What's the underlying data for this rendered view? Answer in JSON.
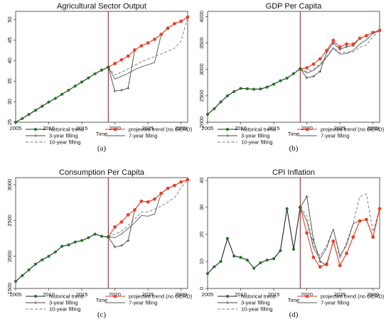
{
  "chart_data": [
    {
      "type": "line",
      "title": "Agricultural Sector Output",
      "caption": "(a)",
      "xlabel": "Time",
      "ylabel": "",
      "xlim": [
        2005,
        2031
      ],
      "ylim": [
        25,
        52
      ],
      "xticks": [
        2005,
        2010,
        2015,
        2020,
        2025,
        2030
      ],
      "yticks": [
        25,
        30,
        35,
        40,
        45,
        50
      ],
      "vline_x": 2019,
      "legend_position": "bottom",
      "series": [
        {
          "name": "historical trend",
          "x": [
            2005,
            2006,
            2007,
            2008,
            2009,
            2010,
            2011,
            2012,
            2013,
            2014,
            2015,
            2016,
            2017,
            2018,
            2019
          ],
          "values": [
            25,
            25.9,
            26.9,
            27.9,
            28.9,
            29.9,
            30.8,
            31.8,
            32.8,
            33.8,
            34.8,
            35.8,
            36.8,
            37.7,
            38.4
          ]
        },
        {
          "name": "projected trend (no GERD)",
          "x": [
            2019,
            2020,
            2021,
            2022,
            2023,
            2024,
            2025,
            2026,
            2027,
            2028,
            2029,
            2030,
            2031
          ],
          "values": [
            38.4,
            39.3,
            40.2,
            41.1,
            42.6,
            43.6,
            44.3,
            45.2,
            46.4,
            47.9,
            49,
            49.6,
            50.6
          ]
        },
        {
          "name": "3-year filling",
          "x": [
            2019,
            2020,
            2021,
            2022,
            2023,
            2024,
            2025,
            2026,
            2027,
            2028,
            2029,
            2030,
            2031
          ],
          "values": [
            38.4,
            32.6,
            32.8,
            33.3,
            42.6,
            43.6,
            44.3,
            45.2,
            46.4,
            47.9,
            49,
            49.6,
            50.6
          ]
        },
        {
          "name": "7-year filling",
          "x": [
            2019,
            2020,
            2021,
            2022,
            2023,
            2024,
            2025,
            2026,
            2027,
            2028,
            2029,
            2030,
            2031
          ],
          "values": [
            38.4,
            35.5,
            36.2,
            36.9,
            37.8,
            38.5,
            39,
            39.5,
            46.4,
            47.9,
            49,
            49.6,
            50.6
          ]
        },
        {
          "name": "10-year filling",
          "x": [
            2019,
            2020,
            2021,
            2022,
            2023,
            2024,
            2025,
            2026,
            2027,
            2028,
            2029,
            2030,
            2031
          ],
          "values": [
            38.4,
            36.5,
            37.2,
            38,
            38.9,
            39.7,
            40.4,
            41,
            41.6,
            42.3,
            43,
            44.8,
            50.6
          ]
        }
      ]
    },
    {
      "type": "line",
      "title": "GDP Per Capita",
      "caption": "(b)",
      "xlabel": "Time",
      "ylabel": "",
      "xlim": [
        2005,
        2031
      ],
      "ylim": [
        2000,
        4100
      ],
      "xticks": [
        2005,
        2010,
        2015,
        2020,
        2025,
        2030
      ],
      "yticks": [
        2000,
        2500,
        3000,
        3500,
        4000
      ],
      "vline_x": 2019,
      "legend_position": "bottom",
      "series": [
        {
          "name": "historical trend",
          "x": [
            2005,
            2006,
            2007,
            2008,
            2009,
            2010,
            2011,
            2012,
            2013,
            2014,
            2015,
            2016,
            2017,
            2018,
            2019
          ],
          "values": [
            2150,
            2255,
            2385,
            2500,
            2580,
            2640,
            2635,
            2625,
            2630,
            2665,
            2720,
            2785,
            2835,
            2920,
            3010
          ]
        },
        {
          "name": "projected trend (no GERD)",
          "x": [
            2019,
            2020,
            2021,
            2022,
            2023,
            2024,
            2025,
            2026,
            2027,
            2028,
            2029,
            2030,
            2031
          ],
          "values": [
            3010,
            3030,
            3100,
            3200,
            3360,
            3550,
            3425,
            3480,
            3480,
            3590,
            3640,
            3700,
            3740
          ]
        },
        {
          "name": "3-year filling",
          "x": [
            2019,
            2020,
            2021,
            2022,
            2023,
            2024,
            2025,
            2026,
            2027,
            2028,
            2029,
            2030,
            2031
          ],
          "values": [
            3010,
            2840,
            2870,
            2960,
            3330,
            3500,
            3380,
            3430,
            3450,
            3590,
            3640,
            3700,
            3740
          ]
        },
        {
          "name": "7-year filling",
          "x": [
            2019,
            2020,
            2021,
            2022,
            2023,
            2024,
            2025,
            2026,
            2027,
            2028,
            2029,
            2030,
            2031
          ],
          "values": [
            3010,
            2930,
            2980,
            3080,
            3230,
            3400,
            3290,
            3300,
            3360,
            3480,
            3560,
            3680,
            3740
          ]
        },
        {
          "name": "10-year filling",
          "x": [
            2019,
            2020,
            2021,
            2022,
            2023,
            2024,
            2025,
            2026,
            2027,
            2028,
            2029,
            2030,
            2031
          ],
          "values": [
            3010,
            2960,
            3010,
            3100,
            3240,
            3420,
            3320,
            3330,
            3330,
            3420,
            3460,
            3620,
            3740
          ]
        }
      ]
    },
    {
      "type": "line",
      "title": "Consumption Per Capita",
      "caption": "(c)",
      "xlabel": "Time",
      "ylabel": "",
      "xlim": [
        2005,
        2031
      ],
      "ylim": [
        1550,
        3100
      ],
      "xticks": [
        2005,
        2010,
        2015,
        2020,
        2025,
        2030
      ],
      "yticks": [
        1500,
        2000,
        2500,
        3000
      ],
      "vline_x": 2019,
      "legend_position": "bottom",
      "series": [
        {
          "name": "historical trend",
          "x": [
            2005,
            2006,
            2007,
            2008,
            2009,
            2010,
            2011,
            2012,
            2013,
            2014,
            2015,
            2016,
            2017,
            2018,
            2019
          ],
          "values": [
            1650,
            1730,
            1810,
            1890,
            1950,
            2000,
            2060,
            2140,
            2160,
            2200,
            2220,
            2260,
            2310,
            2280,
            2270
          ]
        },
        {
          "name": "projected trend (no GERD)",
          "x": [
            2019,
            2020,
            2021,
            2022,
            2023,
            2024,
            2025,
            2026,
            2027,
            2028,
            2029,
            2030,
            2031
          ],
          "values": [
            2270,
            2410,
            2480,
            2580,
            2650,
            2770,
            2760,
            2800,
            2880,
            2950,
            2990,
            3040,
            3070
          ]
        },
        {
          "name": "3-year filling",
          "x": [
            2019,
            2020,
            2021,
            2022,
            2023,
            2024,
            2025,
            2026,
            2027,
            2028,
            2029,
            2030,
            2031
          ],
          "values": [
            2270,
            2130,
            2150,
            2220,
            2650,
            2770,
            2760,
            2800,
            2880,
            2950,
            2990,
            3040,
            3070
          ]
        },
        {
          "name": "7-year filling",
          "x": [
            2019,
            2020,
            2021,
            2022,
            2023,
            2024,
            2025,
            2026,
            2027,
            2028,
            2029,
            2030,
            2031
          ],
          "values": [
            2270,
            2260,
            2310,
            2390,
            2470,
            2570,
            2560,
            2590,
            2880,
            2950,
            2990,
            3040,
            3070
          ]
        },
        {
          "name": "10-year filling",
          "x": [
            2019,
            2020,
            2021,
            2022,
            2023,
            2024,
            2025,
            2026,
            2027,
            2028,
            2029,
            2030,
            2031
          ],
          "values": [
            2270,
            2310,
            2350,
            2430,
            2520,
            2620,
            2620,
            2660,
            2700,
            2760,
            2820,
            2960,
            3070
          ]
        }
      ]
    },
    {
      "type": "line",
      "title": "CPI Inflation",
      "caption": "(d)",
      "xlabel": "Time",
      "ylabel": "",
      "xlim": [
        2005,
        2031
      ],
      "ylim": [
        0,
        41
      ],
      "xticks": [
        2005,
        2010,
        2015,
        2020,
        2025,
        2030
      ],
      "yticks": [
        0,
        10,
        20,
        30,
        40
      ],
      "vline_x": 2019,
      "legend_position": "bottom",
      "series": [
        {
          "name": "historical trend",
          "x": [
            2005,
            2006,
            2007,
            2008,
            2009,
            2010,
            2011,
            2012,
            2013,
            2014,
            2015,
            2016,
            2017,
            2018,
            2019
          ],
          "values": [
            5.5,
            8,
            10,
            18.5,
            12,
            11.5,
            10.5,
            7.5,
            9.5,
            10.5,
            11,
            14,
            29.5,
            14.5,
            30
          ]
        },
        {
          "name": "projected trend (no GERD)",
          "x": [
            2019,
            2020,
            2021,
            2022,
            2023,
            2024,
            2025,
            2026,
            2027,
            2028,
            2029,
            2030,
            2031
          ],
          "values": [
            30,
            20.5,
            11.5,
            8,
            9,
            17.5,
            8.5,
            13,
            19,
            25,
            25.5,
            19,
            29.5
          ]
        },
        {
          "name": "3-year filling",
          "x": [
            2019,
            2020,
            2021,
            2022,
            2023,
            2024,
            2025,
            2026,
            2027,
            2028,
            2029,
            2030,
            2031
          ],
          "values": [
            30,
            34,
            18,
            10,
            8.5,
            17.5,
            8.5,
            13,
            19,
            25,
            25.5,
            19,
            29.5
          ]
        },
        {
          "name": "7-year filling",
          "x": [
            2019,
            2020,
            2021,
            2022,
            2023,
            2024,
            2025,
            2026,
            2027,
            2028,
            2029,
            2030,
            2031
          ],
          "values": [
            30,
            25,
            15,
            11,
            15,
            22,
            12,
            16,
            24,
            25,
            25.5,
            19,
            29.5
          ]
        },
        {
          "name": "10-year filling",
          "x": [
            2019,
            2020,
            2021,
            2022,
            2023,
            2024,
            2025,
            2026,
            2027,
            2028,
            2029,
            2030,
            2031
          ],
          "values": [
            30,
            27,
            16,
            12,
            16,
            22,
            11,
            17,
            24,
            34,
            35,
            21,
            29.5
          ]
        }
      ]
    }
  ],
  "colors": {
    "historical": "#1f7a1f",
    "projected": "#e8402a",
    "filling3": "#444444",
    "filling7": "#555555",
    "filling10": "#777777",
    "vline": "#8b1a1a",
    "axis": "#333333"
  }
}
